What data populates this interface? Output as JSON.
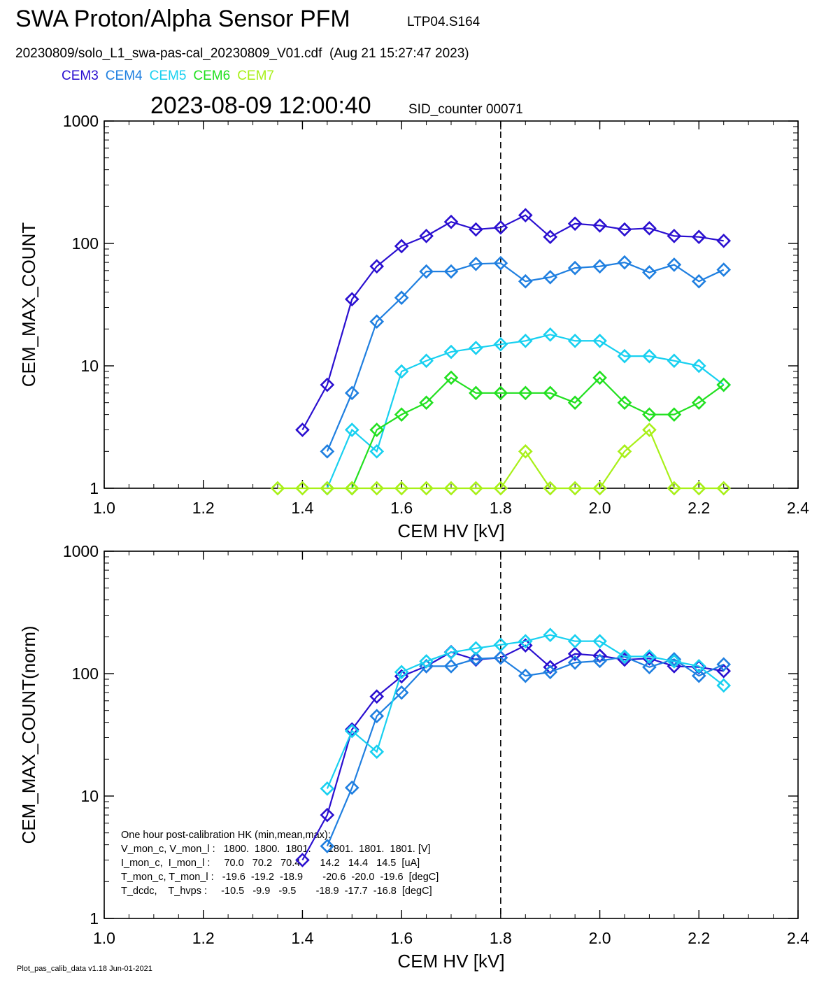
{
  "header": {
    "title": "SWA Proton/Alpha Sensor PFM",
    "tag": "LTP04.S164",
    "file_line": "20230809/solo_L1_swa-pas-cal_20230809_V01.cdf  (Aug 21 15:27:47 2023)",
    "timestamp": "2023-08-09 12:00:40",
    "sid": "SID_counter 00071"
  },
  "legend": [
    {
      "label": "CEM3",
      "color": "#2a0fd0"
    },
    {
      "label": "CEM4",
      "color": "#1f7fe0"
    },
    {
      "label": "CEM5",
      "color": "#18d0f0"
    },
    {
      "label": "CEM6",
      "color": "#22e020"
    },
    {
      "label": "CEM7",
      "color": "#a8f018"
    }
  ],
  "footer": "Plot_pas_calib_data v1.18 Jun-01-2021",
  "hk_box": {
    "lines": [
      "One hour post-calibration HK (min,mean,max):",
      "V_mon_c, V_mon_l :   1800.  1800.  1801.      1801.  1801.  1801. [V]",
      "I_mon_c,  I_mon_l :     70.0   70.2   70.4       14.2   14.4   14.5  [uA]",
      "T_mon_c, T_mon_l :   -19.6  -19.2  -18.9       -20.6  -20.0  -19.6  [degC]",
      "T_dcdc,    T_hvps :     -10.5   -9.9   -9.5       -18.9  -17.7  -16.8  [degC]"
    ]
  },
  "chart_data": [
    {
      "type": "line",
      "title": "",
      "xlabel": "CEM HV [kV]",
      "ylabel": "CEM_MAX_COUNT",
      "xlim": [
        1.0,
        2.4
      ],
      "ylim": [
        1,
        1000
      ],
      "yscale": "log",
      "x_ticks": [
        "1.0",
        "1.2",
        "1.4",
        "1.6",
        "1.8",
        "2.0",
        "2.2",
        "2.4"
      ],
      "y_ticks": [
        "1",
        "10",
        "100",
        "1000"
      ],
      "marker": "diamond",
      "vline_x": 1.8,
      "series": [
        {
          "color": "#2a0fd0",
          "x": [
            1.4,
            1.45,
            1.5,
            1.55,
            1.6,
            1.65,
            1.7,
            1.75,
            1.8,
            1.85,
            1.9,
            1.95,
            2.0,
            2.05,
            2.1,
            2.15,
            2.2,
            2.25
          ],
          "y": [
            3,
            7,
            35,
            65,
            95,
            115,
            150,
            130,
            135,
            170,
            113,
            145,
            140,
            130,
            133,
            115,
            113,
            105
          ]
        },
        {
          "color": "#1f7fe0",
          "x": [
            1.45,
            1.5,
            1.55,
            1.6,
            1.65,
            1.7,
            1.75,
            1.8,
            1.85,
            1.9,
            1.95,
            2.0,
            2.05,
            2.1,
            2.15,
            2.2,
            2.25
          ],
          "y": [
            2,
            6,
            23,
            36,
            59,
            59,
            68,
            69,
            49,
            53,
            63,
            65,
            70,
            58,
            67,
            49,
            61
          ]
        },
        {
          "color": "#18d0f0",
          "x": [
            1.45,
            1.5,
            1.55,
            1.6,
            1.65,
            1.7,
            1.75,
            1.8,
            1.85,
            1.9,
            1.95,
            2.0,
            2.05,
            2.1,
            2.15,
            2.2,
            2.25
          ],
          "y": [
            1,
            3,
            2,
            9,
            11,
            13,
            14,
            15,
            16,
            18,
            16,
            16,
            12,
            12,
            11,
            10,
            7
          ]
        },
        {
          "color": "#22e020",
          "x": [
            1.5,
            1.55,
            1.6,
            1.65,
            1.7,
            1.75,
            1.8,
            1.85,
            1.9,
            1.95,
            2.0,
            2.05,
            2.1,
            2.15,
            2.2,
            2.25
          ],
          "y": [
            1,
            3,
            4,
            5,
            8,
            6,
            6,
            6,
            6,
            5,
            8,
            5,
            4,
            4,
            5,
            7
          ]
        },
        {
          "color": "#a8f018",
          "x": [
            1.35,
            1.4,
            1.45,
            1.5,
            1.55,
            1.6,
            1.65,
            1.7,
            1.75,
            1.8,
            1.85,
            1.9,
            1.95,
            2.0,
            2.05,
            2.1,
            2.15,
            2.2,
            2.25
          ],
          "y": [
            1,
            1,
            1,
            1,
            1,
            1,
            1,
            1,
            1,
            1,
            2,
            1,
            1,
            1,
            2,
            3,
            1,
            1,
            1
          ]
        }
      ]
    },
    {
      "type": "line",
      "title": "",
      "xlabel": "CEM HV [kV]",
      "ylabel": "CEM_MAX_COUNT(norm)",
      "xlim": [
        1.0,
        2.4
      ],
      "ylim": [
        1,
        1000
      ],
      "yscale": "log",
      "x_ticks": [
        "1.0",
        "1.2",
        "1.4",
        "1.6",
        "1.8",
        "2.0",
        "2.2",
        "2.4"
      ],
      "y_ticks": [
        "1",
        "10",
        "100",
        "1000"
      ],
      "marker": "diamond",
      "vline_x": 1.8,
      "series": [
        {
          "color": "#2a0fd0",
          "x": [
            1.4,
            1.45,
            1.5,
            1.55,
            1.6,
            1.65,
            1.7,
            1.75,
            1.8,
            1.85,
            1.9,
            1.95,
            2.0,
            2.05,
            2.1,
            2.15,
            2.2,
            2.25
          ],
          "y": [
            3,
            7,
            35,
            65,
            95,
            115,
            150,
            130,
            135,
            170,
            113,
            145,
            140,
            130,
            133,
            115,
            113,
            105
          ]
        },
        {
          "color": "#1f7fe0",
          "x": [
            1.45,
            1.5,
            1.55,
            1.6,
            1.65,
            1.7,
            1.75,
            1.8,
            1.85,
            1.9,
            1.95,
            2.0,
            2.05,
            2.1,
            2.15,
            2.2,
            2.25
          ],
          "y": [
            3.9,
            11.7,
            45,
            70,
            115,
            115,
            132,
            135,
            96,
            103,
            123,
            127,
            137,
            113,
            131,
            96,
            119
          ]
        },
        {
          "color": "#18d0f0",
          "x": [
            1.45,
            1.5,
            1.55,
            1.6,
            1.65,
            1.7,
            1.75,
            1.8,
            1.85,
            1.9,
            1.95,
            2.0,
            2.05,
            2.1,
            2.15,
            2.2,
            2.25
          ],
          "y": [
            11.5,
            34,
            23,
            103,
            126,
            149,
            161,
            172,
            184,
            207,
            184,
            184,
            138,
            138,
            126,
            115,
            80
          ]
        }
      ],
      "hk_annotation": "hk_box"
    }
  ]
}
